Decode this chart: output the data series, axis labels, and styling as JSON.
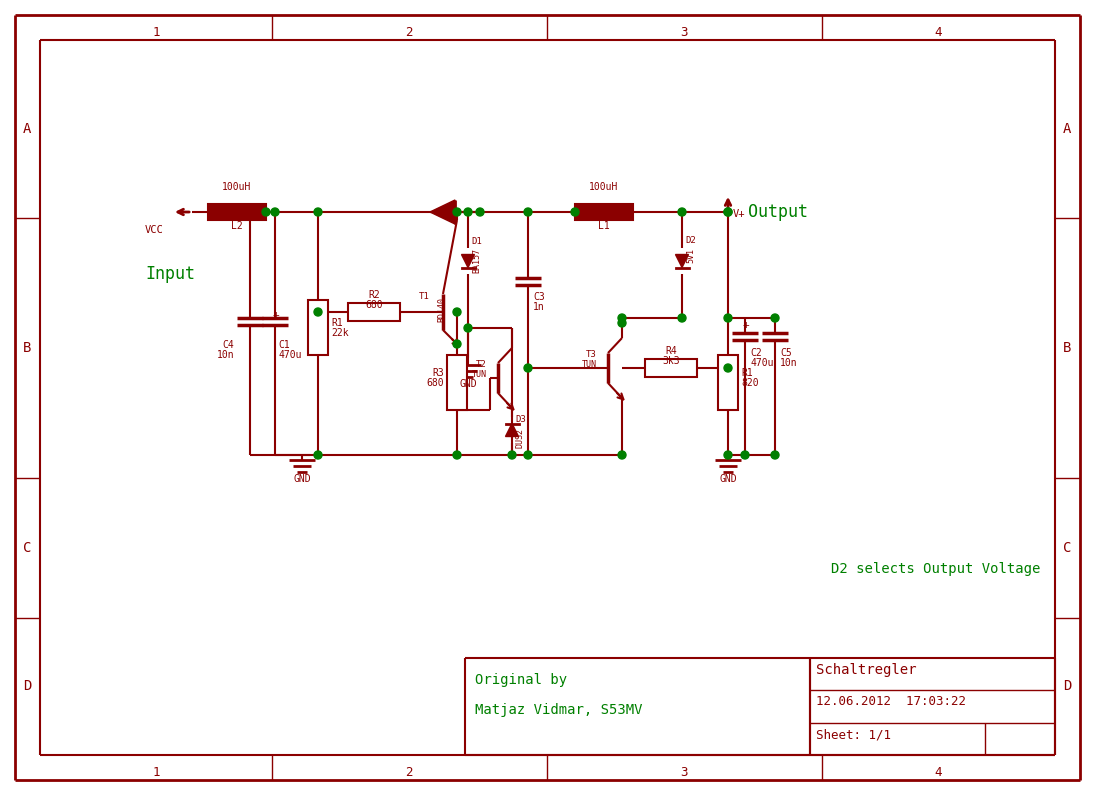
{
  "bg_color": "#ffffff",
  "border_color": "#8B0000",
  "component_color": "#8B0000",
  "wire_color": "#000000",
  "node_color": "#008000",
  "label_green": "#008000",
  "text_darkred": "#8B0000",
  "title": "Schaltregler",
  "date": "12.06.2012  17:03:22",
  "sheet": "Sheet: 1/1",
  "author_line1": "Original by",
  "author_line2": "Matjaz Vidmar, S53MV",
  "note": "D2 selects Output Voltage",
  "input_label": "Input",
  "output_label": "Output",
  "row_labels": [
    "A",
    "B",
    "C",
    "D"
  ],
  "col_labels": [
    "1",
    "2",
    "3",
    "4"
  ],
  "fig_width": 10.95,
  "fig_height": 7.95,
  "dpi": 100
}
